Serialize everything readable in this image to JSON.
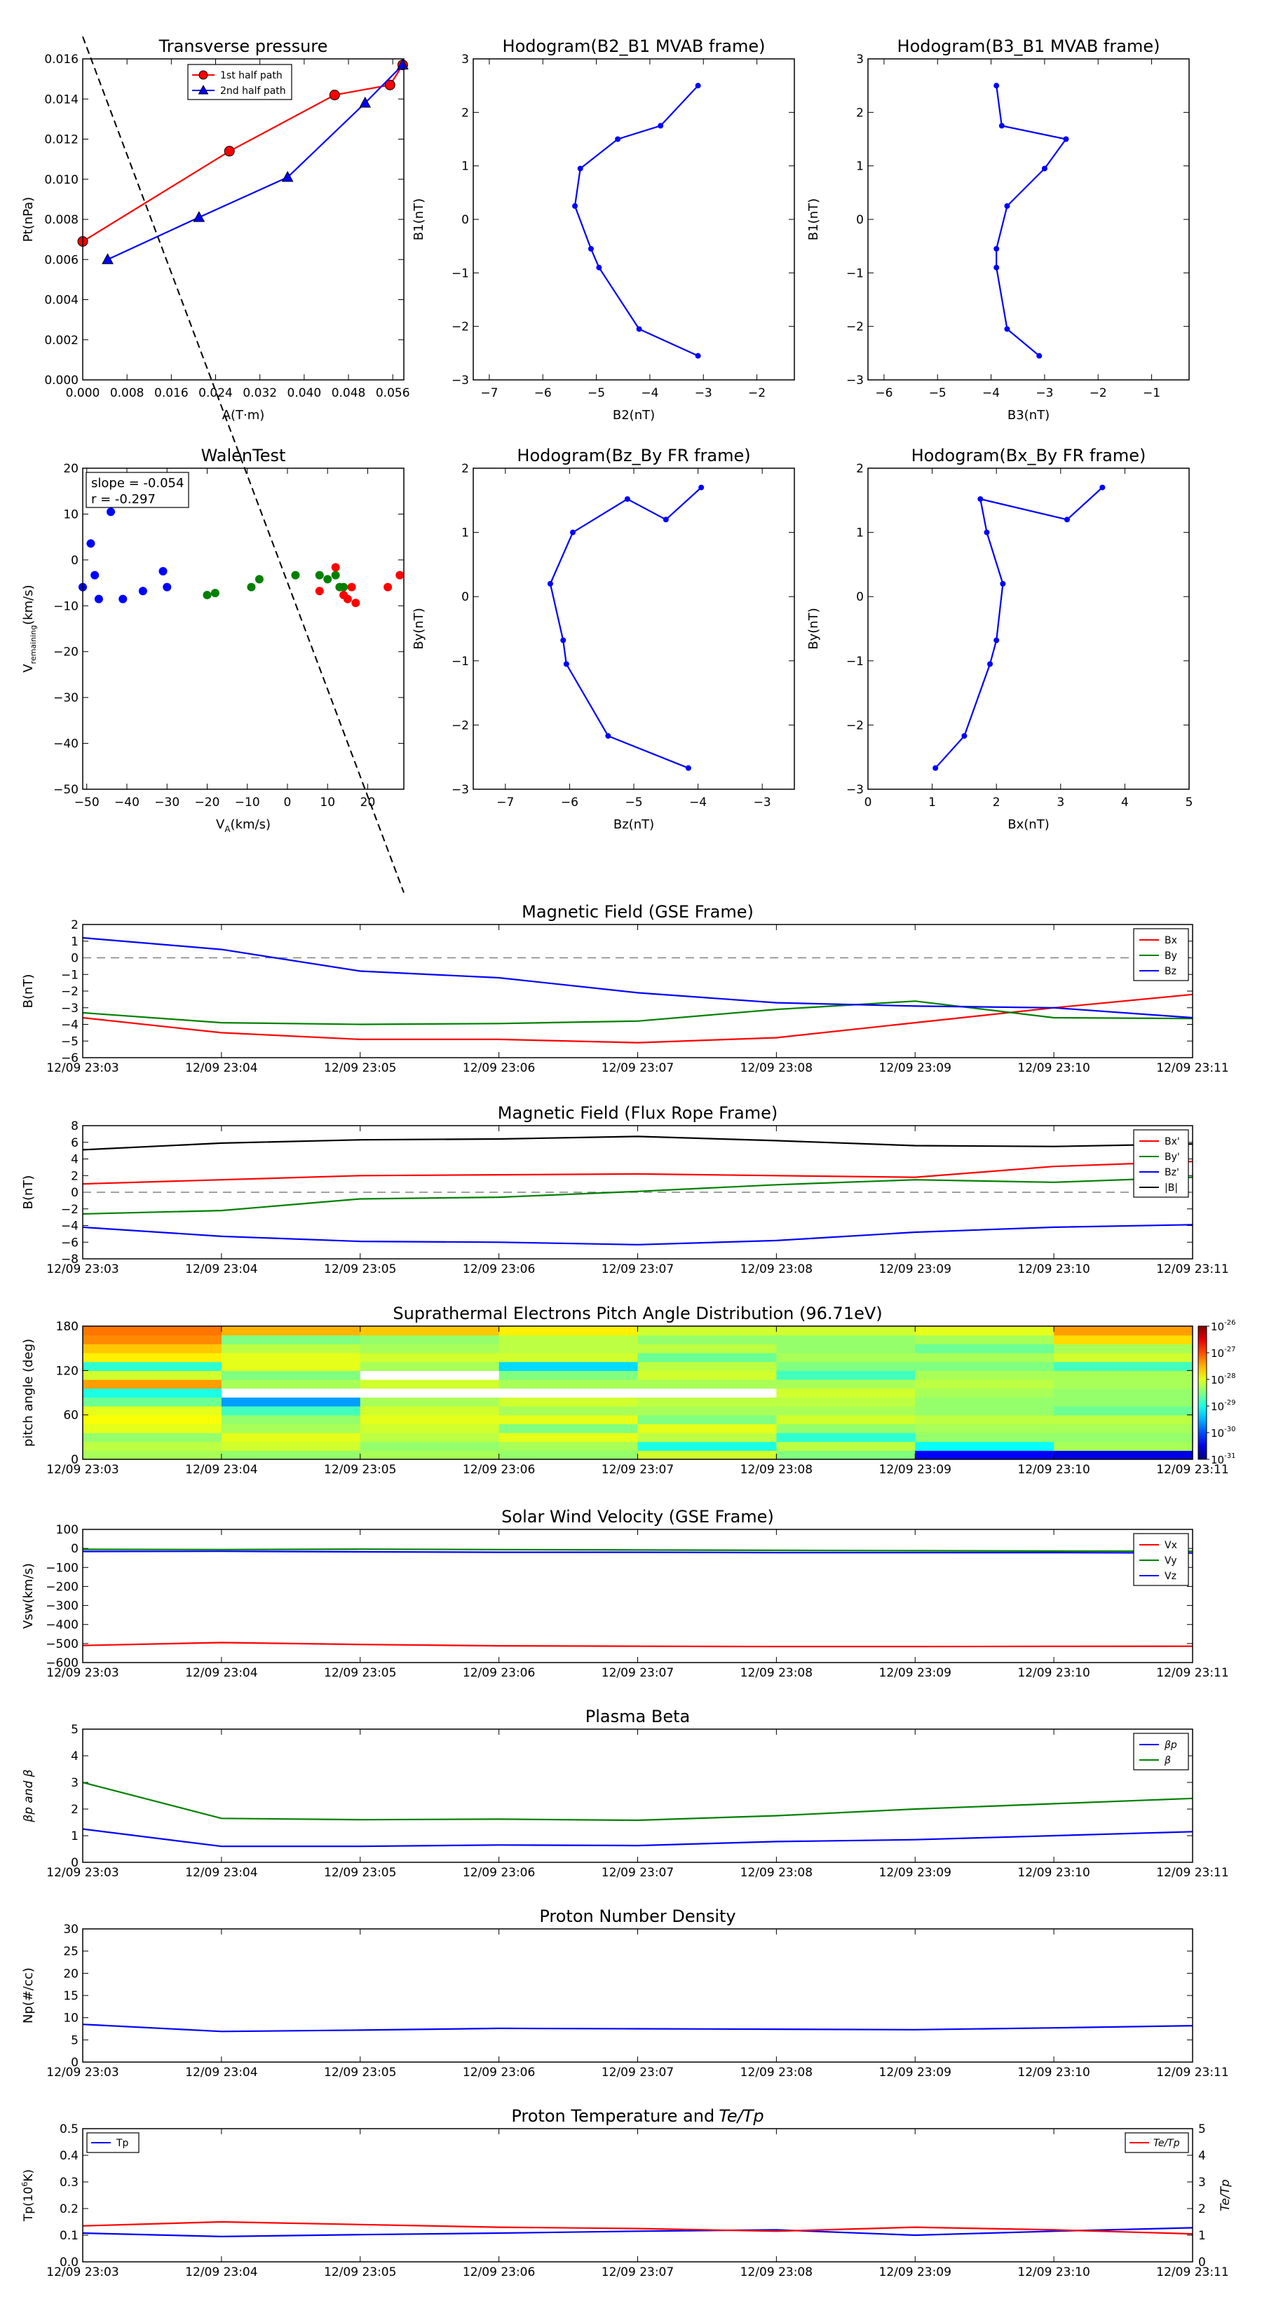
{
  "colors": {
    "red": "#ff0000",
    "green": "#008000",
    "blue": "#0000ff",
    "black": "#000000",
    "grid": "#808080"
  },
  "time_ticks": [
    "12/09 23:03",
    "12/09 23:04",
    "12/09 23:05",
    "12/09 23:06",
    "12/09 23:07",
    "12/09 23:08",
    "12/09 23:09",
    "12/09 23:10",
    "12/09 23:11"
  ],
  "chart_data": [
    {
      "id": "tp",
      "type": "line",
      "title": "Transverse pressure",
      "xlabel": "A(T·m)",
      "ylabel": "Pt(nPa)",
      "xlim": [
        0,
        0.058
      ],
      "ylim": [
        0,
        0.016
      ],
      "xticks": [
        "0.000",
        "0.008",
        "0.016",
        "0.024",
        "0.032",
        "0.040",
        "0.048",
        "0.056"
      ],
      "yticks": [
        "0.000",
        "0.002",
        "0.004",
        "0.006",
        "0.008",
        "0.010",
        "0.012",
        "0.014",
        "0.016"
      ],
      "legend": "top-center",
      "series": [
        {
          "name": "1st half path",
          "color": "red",
          "marker": "circle",
          "x": [
            0.0,
            0.0265,
            0.0455,
            0.0555,
            0.0578
          ],
          "y": [
            0.0069,
            0.0114,
            0.0142,
            0.0147,
            0.0157
          ]
        },
        {
          "name": "2nd half path",
          "color": "blue",
          "marker": "triangle",
          "x": [
            0.0045,
            0.021,
            0.037,
            0.051,
            0.0578
          ],
          "y": [
            0.006,
            0.0081,
            0.0101,
            0.0138,
            0.0157
          ]
        }
      ]
    },
    {
      "id": "h1",
      "type": "line",
      "title": "Hodogram(B2_B1 MVAB frame)",
      "xlabel": "B2(nT)",
      "ylabel": "B1(nT)",
      "xlim": [
        -7.3,
        -1.3
      ],
      "ylim": [
        -3,
        3
      ],
      "xticks": [
        "−7",
        "−6",
        "−5",
        "−4",
        "−3",
        "−2"
      ],
      "yticks": [
        "−3",
        "−2",
        "−1",
        "0",
        "1",
        "2",
        "3"
      ],
      "series": [
        {
          "color": "blue",
          "x": [
            -3.1,
            -3.8,
            -4.6,
            -5.3,
            -5.4,
            -5.1,
            -4.95,
            -4.2,
            -3.1
          ],
          "y": [
            2.5,
            1.75,
            1.5,
            0.95,
            0.25,
            -0.55,
            -0.9,
            -2.05,
            -2.55
          ]
        }
      ]
    },
    {
      "id": "h2",
      "type": "line",
      "title": "Hodogram(B3_B1 MVAB frame)",
      "xlabel": "B3(nT)",
      "ylabel": "B1(nT)",
      "xlim": [
        -6.3,
        -0.3
      ],
      "ylim": [
        -3,
        3
      ],
      "xticks": [
        "−6",
        "−5",
        "−4",
        "−3",
        "−2",
        "−1"
      ],
      "yticks": [
        "−3",
        "−2",
        "−1",
        "0",
        "1",
        "2",
        "3"
      ],
      "series": [
        {
          "color": "blue",
          "x": [
            -3.9,
            -3.8,
            -2.6,
            -3.0,
            -3.7,
            -3.9,
            -3.9,
            -3.7,
            -3.1
          ],
          "y": [
            2.5,
            1.75,
            1.5,
            0.95,
            0.25,
            -0.55,
            -0.9,
            -2.05,
            -2.55
          ]
        }
      ]
    },
    {
      "id": "walen",
      "type": "scatter",
      "title": "WalenTest",
      "xlabel": "V",
      "xlabel_sub": "A",
      "xlabel_unit": "(km/s)",
      "ylabel": "V",
      "ylabel_sub": "remaining",
      "ylabel_unit": "(km/s)",
      "xlim": [
        -51,
        29
      ],
      "ylim": [
        -52,
        29
      ],
      "xticks": [
        "−50",
        "−40",
        "−30",
        "−20",
        "−10",
        "0",
        "10",
        "20"
      ],
      "yticks": [
        "−50",
        "−40",
        "−30",
        "−20",
        "−10",
        "0",
        "10",
        "20"
      ],
      "annotation": [
        "slope = -0.054",
        "r = -0.297"
      ],
      "fit": {
        "slope": -0.054,
        "intercept": 0.2
      },
      "series": [
        {
          "color": "blue",
          "x": [
            -51,
            -49,
            -48,
            -47,
            -44,
            -41,
            -36,
            -31,
            -30
          ],
          "y": [
            -1,
            10,
            2,
            -4,
            18,
            -4,
            -2,
            3,
            -1
          ]
        },
        {
          "color": "green",
          "x": [
            -20,
            -18,
            -9,
            -7,
            2,
            8,
            10,
            12,
            13,
            14
          ],
          "y": [
            -3,
            -2.5,
            -1,
            1,
            2,
            2,
            1,
            2,
            -1,
            -1
          ]
        },
        {
          "color": "red",
          "x": [
            8,
            12,
            14,
            15,
            16,
            17,
            25,
            28
          ],
          "y": [
            -2,
            4,
            -3,
            -4,
            -1,
            -5,
            -1,
            2
          ]
        }
      ]
    },
    {
      "id": "h3",
      "type": "line",
      "title": "Hodogram(Bz_By FR frame)",
      "xlabel": "Bz(nT)",
      "ylabel": "By(nT)",
      "xlim": [
        -7.5,
        -2.5
      ],
      "ylim": [
        -3,
        2
      ],
      "xticks": [
        "−7",
        "−6",
        "−5",
        "−4",
        "−3"
      ],
      "yticks": [
        "−3",
        "−2",
        "−1",
        "0",
        "1",
        "2"
      ],
      "series": [
        {
          "color": "blue",
          "x": [
            -3.95,
            -4.5,
            -5.1,
            -5.95,
            -6.3,
            -6.1,
            -6.05,
            -5.4,
            -4.15
          ],
          "y": [
            1.7,
            1.2,
            1.52,
            1.0,
            0.2,
            -0.68,
            -1.05,
            -2.17,
            -2.67
          ]
        }
      ]
    },
    {
      "id": "h4",
      "type": "line",
      "title": "Hodogram(Bx_By FR frame)",
      "xlabel": "Bx(nT)",
      "ylabel": "By(nT)",
      "xlim": [
        0,
        5
      ],
      "ylim": [
        -3,
        2
      ],
      "xticks": [
        "0",
        "1",
        "2",
        "3",
        "4",
        "5"
      ],
      "yticks": [
        "−3",
        "−2",
        "−1",
        "0",
        "1",
        "2"
      ],
      "series": [
        {
          "color": "blue",
          "x": [
            3.65,
            3.1,
            1.75,
            1.85,
            2.1,
            2.0,
            1.9,
            1.5,
            1.05
          ],
          "y": [
            1.7,
            1.2,
            1.52,
            1.0,
            0.2,
            -0.68,
            -1.05,
            -2.17,
            -2.67
          ]
        }
      ]
    },
    {
      "id": "bgse",
      "type": "line",
      "title": "Magnetic Field (GSE Frame)",
      "ylabel": "B(nT)",
      "ylim": [
        -6,
        2
      ],
      "yticks": [
        "−6",
        "−5",
        "−4",
        "−3",
        "−2",
        "−1",
        "0",
        "1",
        "2"
      ],
      "zero_line": true,
      "legend": "top-right",
      "series": [
        {
          "name": "Bx",
          "color": "red",
          "values": [
            -3.6,
            -4.5,
            -4.9,
            -4.9,
            -5.1,
            -4.8,
            -3.9,
            -3.0,
            -2.2
          ]
        },
        {
          "name": "By",
          "color": "green",
          "values": [
            -3.3,
            -3.9,
            -4.0,
            -3.95,
            -3.8,
            -3.1,
            -2.6,
            -3.6,
            -3.65
          ]
        },
        {
          "name": "Bz",
          "color": "blue",
          "values": [
            1.2,
            0.5,
            -0.8,
            -1.2,
            -2.1,
            -2.7,
            -2.9,
            -3.0,
            -3.6
          ]
        }
      ]
    },
    {
      "id": "bfr",
      "type": "line",
      "title": "Magnetic Field (Flux Rope Frame)",
      "ylabel": "B(nT)",
      "ylim": [
        -8,
        8
      ],
      "yticks": [
        "−8",
        "−6",
        "−4",
        "−2",
        "0",
        "2",
        "4",
        "6",
        "8"
      ],
      "zero_line": true,
      "legend": "top-right",
      "series": [
        {
          "name": "Bx'",
          "color": "red",
          "values": [
            1.0,
            1.5,
            2.0,
            2.1,
            2.2,
            2.0,
            1.8,
            3.1,
            3.7
          ]
        },
        {
          "name": "By'",
          "color": "green",
          "values": [
            -2.6,
            -2.2,
            -0.8,
            -0.6,
            0.1,
            0.9,
            1.5,
            1.2,
            1.8
          ]
        },
        {
          "name": "Bz'",
          "color": "blue",
          "values": [
            -4.2,
            -5.3,
            -5.9,
            -6.0,
            -6.3,
            -5.8,
            -4.8,
            -4.2,
            -3.9
          ]
        },
        {
          "name": "|B|",
          "color": "black",
          "values": [
            5.1,
            5.9,
            6.3,
            6.4,
            6.7,
            6.2,
            5.6,
            5.5,
            5.8
          ]
        }
      ]
    },
    {
      "id": "pad",
      "type": "heatmap",
      "title": "Suprathermal Electrons Pitch Angle Distribution (96.71eV)",
      "ylabel": "pitch angle (deg)",
      "ylim": [
        0,
        180
      ],
      "yticks": [
        "0",
        "60",
        "120",
        "180"
      ],
      "colorbar": {
        "ticks": [
          "10",
          "10",
          "10",
          "10",
          "10",
          "10"
        ],
        "exponents": [
          "-31",
          "-30",
          "-29",
          "-28",
          "-27",
          "-26"
        ],
        "min_exp": -31,
        "max_exp": -26
      },
      "bins": 15,
      "columns": [
        [
          -28.3,
          -28.2,
          -28.4,
          -28.0,
          -27.9,
          -28.0,
          -28.6,
          -29.0,
          -27.4,
          -28.1,
          -28.9,
          -27.8,
          -27.6,
          -27.3,
          -27.2
        ],
        [
          -28.4,
          -28.1,
          -28.0,
          -28.3,
          -28.4,
          -28.8,
          -29.6,
          -99,
          -28.3,
          -28.5,
          -28.0,
          -28.0,
          -28.2,
          -28.5,
          -27.5
        ],
        [
          -28.3,
          -28.4,
          -28.2,
          -28.1,
          -28.0,
          -28.1,
          -28.3,
          -99,
          -28.1,
          -99,
          -28.3,
          -28.1,
          -28.3,
          -28.4,
          -27.6
        ],
        [
          -28.4,
          -28.3,
          -28.0,
          -28.5,
          -28.0,
          -28.3,
          -28.1,
          -99,
          -28.3,
          -28.5,
          -29.3,
          -28.1,
          -28.2,
          -28.2,
          -27.8
        ],
        [
          -28.1,
          -29.0,
          -28.2,
          -28.0,
          -28.5,
          -28.3,
          -28.2,
          -99,
          -28.3,
          -28.1,
          -28.2,
          -28.6,
          -28.2,
          -28.4,
          -28.1
        ],
        [
          -28.5,
          -28.2,
          -28.9,
          -28.4,
          -28.1,
          -28.3,
          -28.2,
          -28.1,
          -28.3,
          -28.8,
          -28.5,
          -28.3,
          -28.4,
          -28.4,
          -28.1
        ],
        [
          -30.4,
          -29.1,
          -28.4,
          -28.3,
          -28.2,
          -28.4,
          -28.4,
          -28.3,
          -28.2,
          -28.3,
          -28.5,
          -28.3,
          -28.6,
          -28.3,
          -28.0
        ],
        [
          -30.5,
          -28.3,
          -28.4,
          -28.3,
          -28.2,
          -28.6,
          -28.4,
          -28.4,
          -28.3,
          -28.3,
          -28.8,
          -28.1,
          -28.3,
          -27.7,
          -27.4
        ]
      ]
    },
    {
      "id": "vsw",
      "type": "line",
      "title": "Solar Wind Velocity (GSE Frame)",
      "ylabel": "Vsw(km/s)",
      "ylim": [
        -600,
        100
      ],
      "yticks": [
        "−600",
        "−500",
        "−400",
        "−300",
        "−200",
        "−100",
        "0",
        "100"
      ],
      "legend": "top-right",
      "series": [
        {
          "name": "Vx",
          "color": "red",
          "values": [
            -510,
            -495,
            -505,
            -512,
            -514,
            -516,
            -516,
            -515,
            -514
          ]
        },
        {
          "name": "Vy",
          "color": "green",
          "values": [
            -5,
            -6,
            -4,
            -6,
            -8,
            -10,
            -12,
            -14,
            -15
          ]
        },
        {
          "name": "Vz",
          "color": "blue",
          "values": [
            -16,
            -15,
            -18,
            -20,
            -20,
            -22,
            -22,
            -22,
            -24
          ]
        }
      ]
    },
    {
      "id": "beta",
      "type": "line",
      "title": "Plasma Beta",
      "ylabel": "βp and β",
      "ylim": [
        0,
        5
      ],
      "yticks": [
        "0",
        "1",
        "2",
        "3",
        "4",
        "5"
      ],
      "legend": "top-right",
      "series": [
        {
          "name": "βp",
          "color": "blue",
          "values": [
            1.25,
            0.6,
            0.6,
            0.65,
            0.63,
            0.78,
            0.85,
            1.0,
            1.15
          ]
        },
        {
          "name": "β",
          "color": "green",
          "values": [
            3.0,
            1.65,
            1.6,
            1.62,
            1.58,
            1.75,
            2.0,
            2.2,
            2.4
          ]
        }
      ]
    },
    {
      "id": "np",
      "type": "line",
      "title": "Proton Number Density",
      "ylabel": "Np(#/cc)",
      "ylim": [
        0,
        30
      ],
      "yticks": [
        "0",
        "5",
        "10",
        "15",
        "20",
        "25",
        "30"
      ],
      "series": [
        {
          "color": "blue",
          "values": [
            8.5,
            6.9,
            7.2,
            7.6,
            7.5,
            7.4,
            7.3,
            7.7,
            8.2
          ]
        }
      ]
    },
    {
      "id": "temp",
      "type": "line",
      "title": "Proton Temperature and",
      "title_math": "Te/Tp",
      "ylabel": "Tp(10",
      "ylabel_sup": "6",
      "ylabel_end": "K)",
      "ylim": [
        0,
        0.5
      ],
      "yticks": [
        "0.0",
        "0.1",
        "0.2",
        "0.3",
        "0.4",
        "0.5"
      ],
      "y2label": "Te/Tp",
      "y2lim": [
        0,
        5
      ],
      "y2ticks": [
        "0",
        "1",
        "2",
        "3",
        "4",
        "5"
      ],
      "series": [
        {
          "name": "Tp",
          "color": "blue",
          "axis": "left",
          "values": [
            0.108,
            0.095,
            0.102,
            0.108,
            0.115,
            0.12,
            0.1,
            0.115,
            0.128
          ]
        },
        {
          "name": "Te/Tp",
          "color": "red",
          "axis": "right",
          "values": [
            1.35,
            1.5,
            1.4,
            1.3,
            1.25,
            1.15,
            1.3,
            1.2,
            1.05
          ]
        }
      ]
    }
  ]
}
